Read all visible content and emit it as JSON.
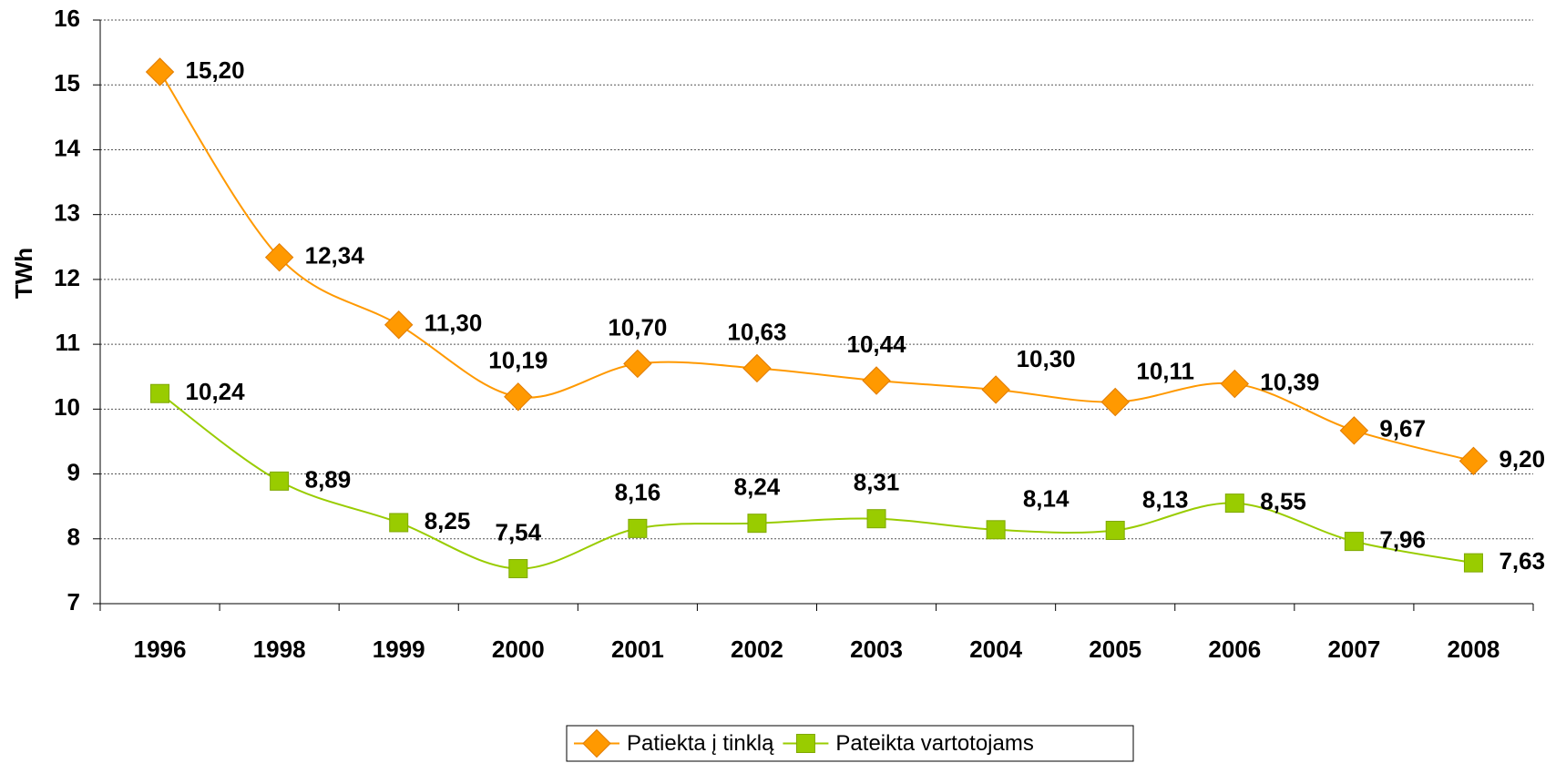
{
  "chart_data": {
    "type": "line",
    "y_label": "TWh",
    "categories": [
      "1996",
      "1998",
      "1999",
      "2000",
      "2001",
      "2002",
      "2003",
      "2004",
      "2005",
      "2006",
      "2007",
      "2008"
    ],
    "series": [
      {
        "name": "Patiekta į tinklą",
        "color": "#ff9900",
        "marker": "diamond",
        "values": [
          15.2,
          12.34,
          11.3,
          10.19,
          10.7,
          10.63,
          10.44,
          10.3,
          10.11,
          10.39,
          9.67,
          9.2
        ],
        "value_labels": [
          "15,20",
          "12,34",
          "11,30",
          "10,19",
          "10,70",
          "10,63",
          "10,44",
          "10,30",
          "10,11",
          "10,39",
          "9,67",
          "9,20"
        ]
      },
      {
        "name": "Pateikta vartotojams",
        "color": "#99cc00",
        "marker": "square",
        "values": [
          10.24,
          8.89,
          8.25,
          7.54,
          8.16,
          8.24,
          8.31,
          8.14,
          8.13,
          8.55,
          7.96,
          7.63
        ],
        "value_labels": [
          "10,24",
          "8,89",
          "8,25",
          "7,54",
          "8,16",
          "8,24",
          "8,31",
          "8,14",
          "8,13",
          "8,55",
          "7,96",
          "7,63"
        ]
      }
    ],
    "ylim": [
      7,
      16
    ],
    "yticks": [
      7,
      8,
      9,
      10,
      11,
      12,
      13,
      14,
      15,
      16
    ],
    "grid": true,
    "smooth": true,
    "legend": "bottom"
  }
}
